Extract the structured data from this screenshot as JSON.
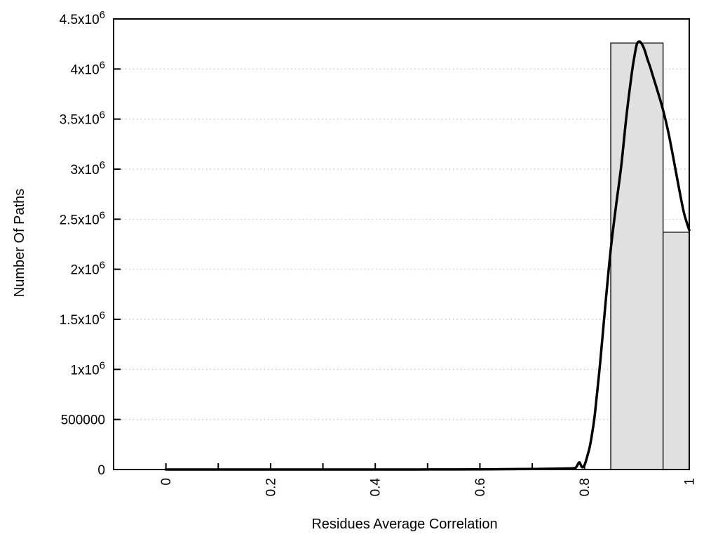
{
  "chart_data": {
    "type": "bar",
    "subtype": "histogram-with-fit-line",
    "title": "",
    "xlabel": "Residues Average Correlation",
    "ylabel": "Number Of Paths",
    "xlim": [
      -0.1,
      1.0
    ],
    "ylim": [
      0,
      4500000
    ],
    "grid": "horizontal-dotted",
    "legend_position": "none",
    "x_major_ticks": [
      {
        "v": 0,
        "label": "0"
      },
      {
        "v": 0.2,
        "label": "0.2"
      },
      {
        "v": 0.4,
        "label": "0.4"
      },
      {
        "v": 0.6,
        "label": "0.6"
      },
      {
        "v": 0.8,
        "label": "0.8"
      },
      {
        "v": 1.0,
        "label": "1"
      }
    ],
    "x_minor_step": 0.1,
    "x_tick_labels_rotated_degrees": 90,
    "y_ticks": [
      {
        "v": 0,
        "label": "0"
      },
      {
        "v": 500000,
        "label": "500000"
      },
      {
        "v": 1000000,
        "label": "1x10^6"
      },
      {
        "v": 1500000,
        "label": "1.5x10^6"
      },
      {
        "v": 2000000,
        "label": "2x10^6"
      },
      {
        "v": 2500000,
        "label": "2.5x10^6"
      },
      {
        "v": 3000000,
        "label": "3x10^6"
      },
      {
        "v": 3500000,
        "label": "3.5x10^6"
      },
      {
        "v": 4000000,
        "label": "4x10^6"
      },
      {
        "v": 4500000,
        "label": "4.5x10^6"
      }
    ],
    "bars": [
      {
        "x_start": 0.85,
        "x_end": 0.95,
        "value": 4260000
      },
      {
        "x_start": 0.95,
        "x_end": 1.0,
        "value": 2370000
      }
    ],
    "curve": {
      "name": "fit-curve",
      "points": [
        [
          0.0,
          0
        ],
        [
          0.05,
          0
        ],
        [
          0.1,
          0
        ],
        [
          0.15,
          0
        ],
        [
          0.2,
          0
        ],
        [
          0.25,
          0
        ],
        [
          0.3,
          0
        ],
        [
          0.35,
          0
        ],
        [
          0.4,
          0
        ],
        [
          0.45,
          0
        ],
        [
          0.5,
          500
        ],
        [
          0.55,
          1000
        ],
        [
          0.6,
          2000
        ],
        [
          0.65,
          3500
        ],
        [
          0.7,
          5000
        ],
        [
          0.72,
          6500
        ],
        [
          0.74,
          8000
        ],
        [
          0.76,
          10000
        ],
        [
          0.78,
          13000
        ],
        [
          0.785,
          32000
        ],
        [
          0.79,
          72000
        ],
        [
          0.795,
          24000
        ],
        [
          0.8,
          46000
        ],
        [
          0.805,
          130000
        ],
        [
          0.81,
          230000
        ],
        [
          0.815,
          380000
        ],
        [
          0.82,
          570000
        ],
        [
          0.83,
          1080000
        ],
        [
          0.84,
          1660000
        ],
        [
          0.85,
          2200000
        ],
        [
          0.86,
          2630000
        ],
        [
          0.87,
          3030000
        ],
        [
          0.88,
          3530000
        ],
        [
          0.89,
          3950000
        ],
        [
          0.895,
          4120000
        ],
        [
          0.9,
          4250000
        ],
        [
          0.905,
          4275000
        ],
        [
          0.91,
          4245000
        ],
        [
          0.915,
          4185000
        ],
        [
          0.92,
          4100000
        ],
        [
          0.925,
          4025000
        ],
        [
          0.93,
          3940000
        ],
        [
          0.94,
          3770000
        ],
        [
          0.95,
          3590000
        ],
        [
          0.96,
          3370000
        ],
        [
          0.97,
          3100000
        ],
        [
          0.98,
          2820000
        ],
        [
          0.99,
          2560000
        ],
        [
          1.0,
          2390000
        ]
      ]
    },
    "colors": {
      "background": "#ffffff",
      "bar_fill": "#e0e0e0",
      "bar_stroke": "#000000",
      "curve": "#000000",
      "grid": "#bdbdbd",
      "axis": "#000000",
      "text": "#000000"
    }
  }
}
